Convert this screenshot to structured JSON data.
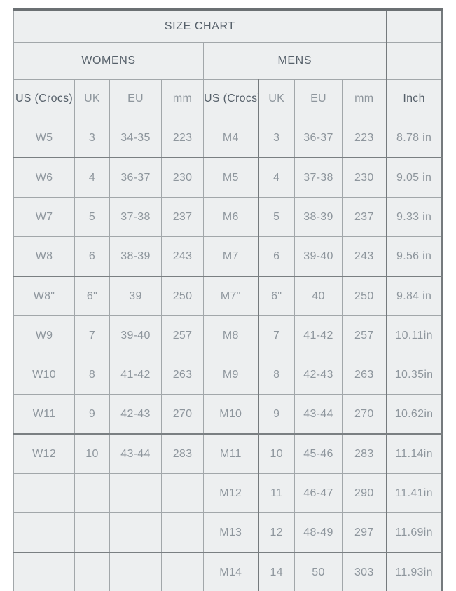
{
  "chart_data": {
    "type": "table",
    "title": "SIZE CHART",
    "group_headers": [
      "WOMENS",
      "MENS"
    ],
    "columns": [
      "US (Crocs)",
      "UK",
      "EU",
      "mm",
      "US (Crocs)",
      "UK",
      "EU",
      "mm",
      "Inch"
    ],
    "rows": [
      [
        "W5",
        "3",
        "34-35",
        "223",
        "M4",
        "3",
        "36-37",
        "223",
        "8.78 in"
      ],
      [
        "W6",
        "4",
        "36-37",
        "230",
        "M5",
        "4",
        "37-38",
        "230",
        "9.05 in"
      ],
      [
        "W7",
        "5",
        "37-38",
        "237",
        "M6",
        "5",
        "38-39",
        "237",
        "9.33 in"
      ],
      [
        "W8",
        "6",
        "38-39",
        "243",
        "M7",
        "6",
        "39-40",
        "243",
        "9.56 in"
      ],
      [
        "W8\"",
        "6\"",
        "39",
        "250",
        "M7\"",
        "6\"",
        "40",
        "250",
        "9.84 in"
      ],
      [
        "W9",
        "7",
        "39-40",
        "257",
        "M8",
        "7",
        "41-42",
        "257",
        "10.11in"
      ],
      [
        "W10",
        "8",
        "41-42",
        "263",
        "M9",
        "8",
        "42-43",
        "263",
        "10.35in"
      ],
      [
        "W11",
        "9",
        "42-43",
        "270",
        "M10",
        "9",
        "43-44",
        "270",
        "10.62in"
      ],
      [
        "W12",
        "10",
        "43-44",
        "283",
        "M11",
        "10",
        "45-46",
        "283",
        "11.14in"
      ],
      [
        "",
        "",
        "",
        "",
        "M12",
        "11",
        "46-47",
        "290",
        "11.41in"
      ],
      [
        "",
        "",
        "",
        "",
        "M13",
        "12",
        "48-49",
        "297",
        "11.69in"
      ],
      [
        "",
        "",
        "",
        "",
        "M14",
        "14",
        "50",
        "303",
        "11.93in"
      ]
    ]
  },
  "colors": {
    "cell_background": "#edeff0",
    "grid_line": "#a2a7aa",
    "grid_line_dark": "#757a7d",
    "table_top_border": "#6b7073",
    "heading_text": "#56606a",
    "body_text": "#8e969d",
    "page_background": "#ffffff"
  }
}
